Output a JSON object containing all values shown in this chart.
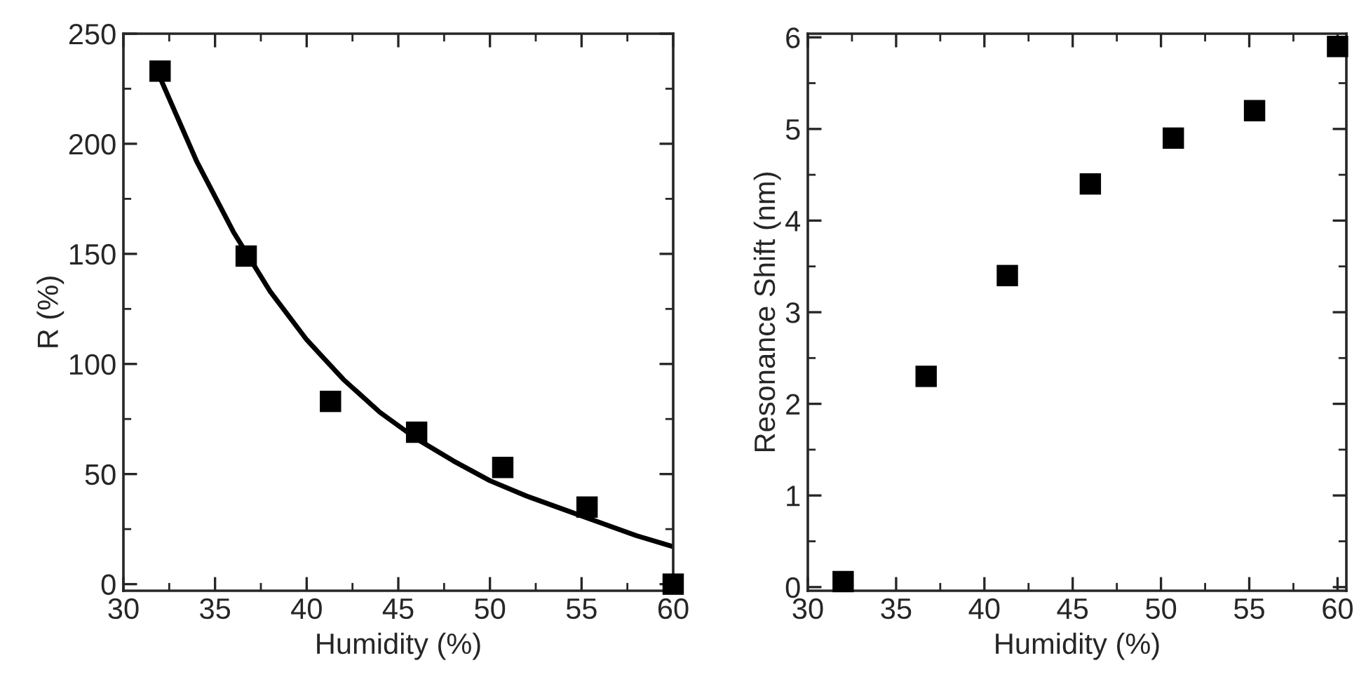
{
  "chart_data": [
    {
      "type": "scatter",
      "xlabel": "Humidity (%)",
      "ylabel": "R (%)",
      "xlim": [
        30,
        60
      ],
      "ylim": [
        -3,
        250
      ],
      "xticks": [
        30,
        35,
        40,
        45,
        50,
        55,
        60
      ],
      "yticks": [
        0,
        50,
        100,
        150,
        200,
        250
      ],
      "marker": "square",
      "grid": false,
      "legend": false,
      "series": [
        {
          "color": "#000000",
          "x": [
            32,
            36.7,
            41.3,
            46,
            50.7,
            55.3,
            60
          ],
          "values": [
            233,
            149,
            83,
            69,
            53,
            35,
            0
          ]
        },
        {
          "type": "line",
          "color": "#000000",
          "marker": "none",
          "line_style": "solid",
          "x": [
            32,
            34,
            36,
            38,
            40,
            42,
            44,
            46,
            48,
            50,
            52,
            54,
            56,
            58,
            60
          ],
          "values": [
            230,
            192,
            160,
            133,
            111,
            93,
            78,
            66,
            56,
            47,
            40,
            34,
            28,
            22,
            17
          ]
        }
      ]
    },
    {
      "type": "scatter",
      "xlabel": "Humidity (%)",
      "ylabel": "Resonance Shift (nm)",
      "xlim": [
        30,
        60.5
      ],
      "ylim": [
        -0.04,
        6.04
      ],
      "xticks": [
        30,
        35,
        40,
        45,
        50,
        55,
        60
      ],
      "yticks": [
        0,
        1,
        2,
        3,
        4,
        5,
        6
      ],
      "marker": "square",
      "grid": false,
      "legend": false,
      "series": [
        {
          "color": "#000000",
          "x": [
            32,
            36.7,
            41.3,
            46,
            50.7,
            55.3,
            60
          ],
          "values": [
            0.06,
            2.3,
            3.4,
            4.4,
            4.9,
            5.2,
            5.9
          ]
        }
      ]
    }
  ]
}
